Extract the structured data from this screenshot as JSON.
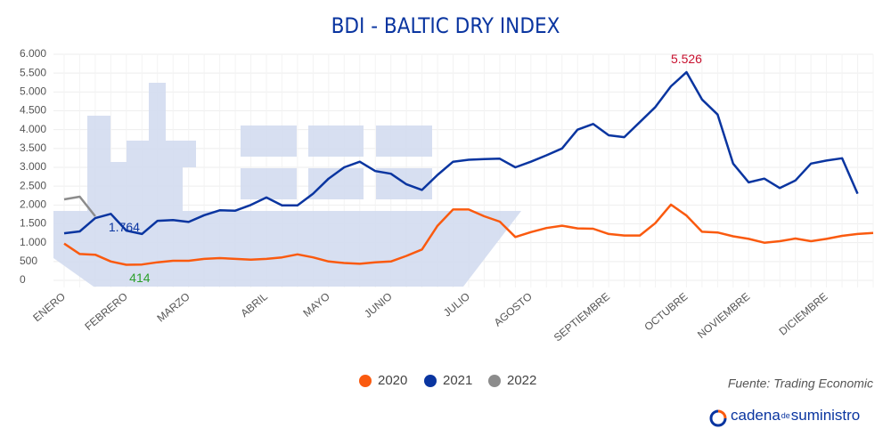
{
  "chart_data": {
    "type": "line",
    "title": "BDI - BALTIC DRY INDEX",
    "categories": [
      "ENERO",
      null,
      null,
      null,
      "FEBRERO",
      null,
      null,
      null,
      "MARZO",
      null,
      null,
      null,
      null,
      "ABRIL",
      null,
      null,
      null,
      "MAYO",
      null,
      null,
      null,
      "JUNIO",
      null,
      null,
      null,
      null,
      "JULIO",
      null,
      null,
      null,
      "AGOSTO",
      null,
      null,
      null,
      null,
      "SEPTIEMBRE",
      null,
      null,
      null,
      null,
      "OCTUBRE",
      null,
      null,
      null,
      "NOVIEMBRE",
      null,
      null,
      null,
      null,
      "DICIEMBRE",
      null,
      null,
      null
    ],
    "series": [
      {
        "name": "2020",
        "color": "#fa5a0f",
        "values": [
          976,
          700,
          680,
          500,
          414,
          420,
          480,
          520,
          520,
          570,
          590,
          570,
          550,
          570,
          610,
          690,
          610,
          500,
          460,
          440,
          480,
          500,
          650,
          820,
          1450,
          1880,
          1880,
          1700,
          1560,
          1150,
          1280,
          1390,
          1450,
          1380,
          1370,
          1230,
          1190,
          1190,
          1520,
          2010,
          1720,
          1290,
          1270,
          1170,
          1100,
          1000,
          1040,
          1110,
          1040,
          1100,
          1180,
          1230,
          1260
        ],
        "value_labels": [
          null,
          null,
          null,
          null,
          "414",
          null,
          null,
          null,
          null,
          null,
          null,
          null,
          null,
          null,
          null,
          null,
          null,
          null,
          null,
          null,
          null,
          null,
          null,
          null,
          null,
          null,
          null,
          null,
          null,
          null,
          null,
          null,
          null,
          null,
          null,
          null,
          null,
          null,
          null,
          null,
          null,
          null,
          null,
          null,
          null,
          null,
          null,
          null,
          null,
          null,
          null,
          null,
          null
        ],
        "label_color": "#2ca02c"
      },
      {
        "name": "2021",
        "color": "#0a35a0",
        "values": [
          1250,
          1300,
          1650,
          1764,
          1320,
          1230,
          1580,
          1600,
          1550,
          1730,
          1860,
          1850,
          2000,
          2200,
          1990,
          1990,
          2300,
          2700,
          3000,
          3150,
          2900,
          2830,
          2550,
          2400,
          2800,
          3150,
          3200,
          3220,
          3230,
          3000,
          3150,
          3320,
          3500,
          4000,
          4150,
          3850,
          3800,
          4200,
          4600,
          5150,
          5526,
          4800,
          4400,
          3100,
          2600,
          2700,
          2450,
          2650,
          3100,
          3180,
          3240,
          2300,
          null
        ],
        "value_labels": [
          null,
          null,
          null,
          "1.764",
          null,
          null,
          null,
          null,
          null,
          null,
          null,
          null,
          null,
          null,
          null,
          null,
          null,
          null,
          null,
          null,
          null,
          null,
          null,
          null,
          null,
          null,
          null,
          null,
          null,
          null,
          null,
          null,
          null,
          null,
          null,
          null,
          null,
          null,
          null,
          null,
          "5.526",
          null,
          null,
          null,
          null,
          null,
          null,
          null,
          null,
          null,
          null,
          null,
          null
        ],
        "label_color": "#0a35a0"
      },
      {
        "name": "2022",
        "color": "#8c8c8c",
        "values": [
          2150,
          2220,
          1700,
          null,
          null,
          null,
          null,
          null,
          null,
          null,
          null,
          null,
          null,
          null,
          null,
          null,
          null,
          null,
          null,
          null,
          null,
          null,
          null,
          null,
          null,
          null,
          null,
          null,
          null,
          null,
          null,
          null,
          null,
          null,
          null,
          null,
          null,
          null,
          null,
          null,
          null,
          null,
          null,
          null,
          null,
          null,
          null,
          null,
          null,
          null,
          null,
          null,
          null
        ]
      }
    ],
    "ylim": [
      0,
      6000
    ],
    "yticks": [
      0,
      500,
      {
        "value": 1000,
        "label": "1.000"
      },
      {
        "value": 1500,
        "label": "1.500"
      },
      {
        "value": 2000,
        "label": "2.000"
      },
      {
        "value": 2500,
        "label": "2.500"
      },
      {
        "value": 3000,
        "label": "3.000"
      },
      {
        "value": 3500,
        "label": "3.500"
      },
      {
        "value": 4000,
        "label": "4.000"
      },
      {
        "value": 4500,
        "label": "4.500"
      },
      {
        "value": 5000,
        "label": "5.000"
      },
      {
        "value": 5500,
        "label": "5.500"
      },
      {
        "value": 6000,
        "label": "6.000"
      }
    ],
    "grid": true,
    "legend": "bottom",
    "source": "Fuente: Trading Economic"
  },
  "brand": {
    "name": "cadena",
    "connector": "de",
    "suffix": "suministro"
  }
}
